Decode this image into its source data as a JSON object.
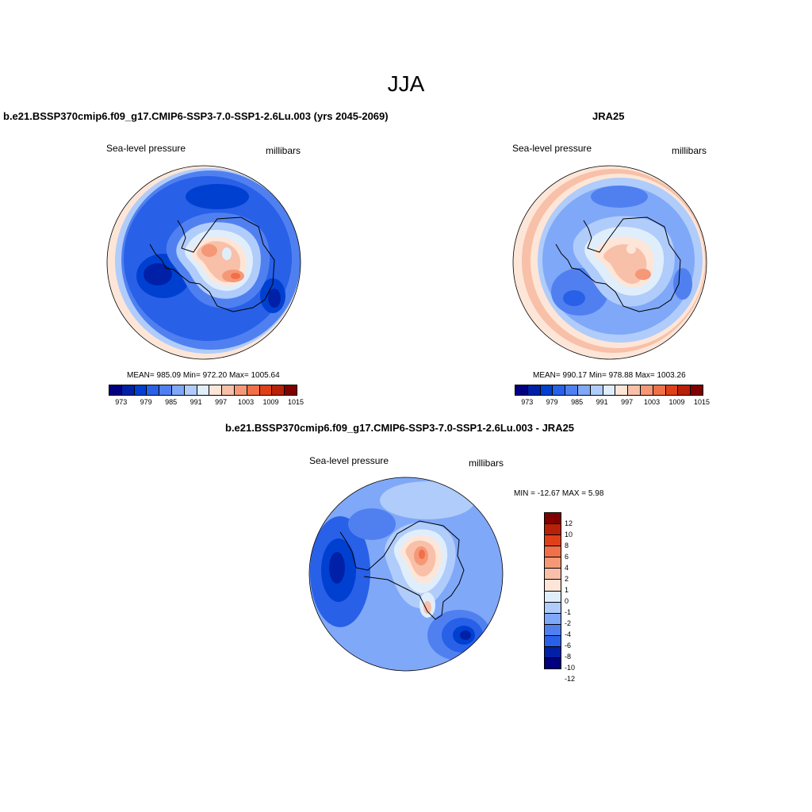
{
  "title": "JJA",
  "palette": {
    "abs": [
      "#000080",
      "#0020a8",
      "#0040d0",
      "#2860e8",
      "#5080f0",
      "#80a8f8",
      "#b0ccfa",
      "#e0eefc",
      "#fde6d8",
      "#f8c0a8",
      "#f59878",
      "#f07048",
      "#e04018",
      "#b82008",
      "#800000"
    ],
    "diff": [
      "#800000",
      "#b82008",
      "#e04018",
      "#f07048",
      "#f59878",
      "#f8c0a8",
      "#fde6d8",
      "#e0eefc",
      "#b0ccfa",
      "#80a8f8",
      "#5080f0",
      "#2860e8",
      "#0020a8",
      "#000080"
    ]
  },
  "panels": {
    "left": {
      "title": "b.e21.BSSP370cmip6.f09_g17.CMIP6-SSP3-7.0-SSP1-2.6Lu.003 (yrs 2045-2069)",
      "variable": "Sea-level pressure",
      "units": "millibars",
      "stats": "MEAN= 985.09  Min= 972.20  Max= 1005.64",
      "ticks": [
        "973",
        "979",
        "985",
        "991",
        "997",
        "1003",
        "1009",
        "1015"
      ]
    },
    "right": {
      "title": "JRA25",
      "variable": "Sea-level pressure",
      "units": "millibars",
      "stats": "MEAN= 990.17  Min= 978.88  Max= 1003.26",
      "ticks": [
        "973",
        "979",
        "985",
        "991",
        "997",
        "1003",
        "1009",
        "1015"
      ]
    },
    "diff": {
      "title": "b.e21.BSSP370cmip6.f09_g17.CMIP6-SSP3-7.0-SSP1-2.6Lu.003 - JRA25",
      "variable": "Sea-level pressure",
      "units": "millibars",
      "stats": "MIN = -12.67 MAX =   5.98",
      "ticks": [
        "12",
        "10",
        "8",
        "6",
        "4",
        "2",
        "1",
        "0",
        "-1",
        "-2",
        "-4",
        "-6",
        "-8",
        "-10",
        "-12"
      ]
    }
  }
}
